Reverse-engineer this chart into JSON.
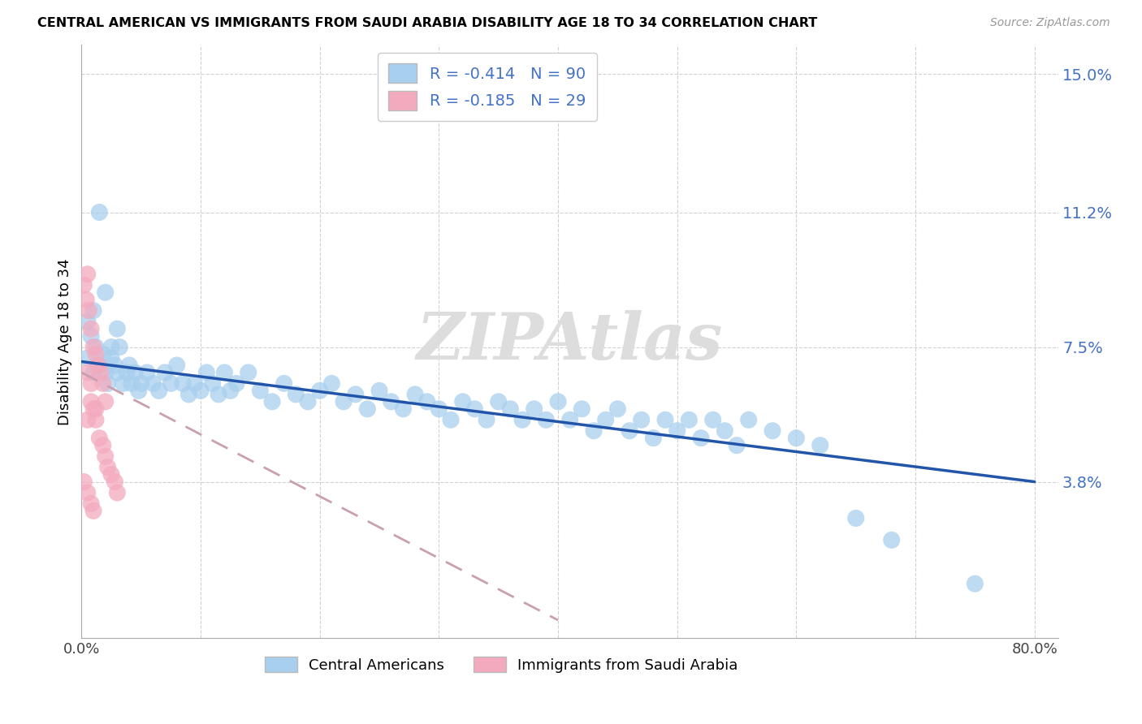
{
  "title": "CENTRAL AMERICAN VS IMMIGRANTS FROM SAUDI ARABIA DISABILITY AGE 18 TO 34 CORRELATION CHART",
  "source": "Source: ZipAtlas.com",
  "ylabel": "Disability Age 18 to 34",
  "xlim": [
    0.0,
    0.82
  ],
  "ylim": [
    -0.005,
    0.158
  ],
  "yticks": [
    0.038,
    0.075,
    0.112,
    0.15
  ],
  "ytick_labels": [
    "3.8%",
    "7.5%",
    "11.2%",
    "15.0%"
  ],
  "xticks": [
    0.0,
    0.1,
    0.2,
    0.3,
    0.4,
    0.5,
    0.6,
    0.7,
    0.8
  ],
  "xtick_labels": [
    "0.0%",
    "",
    "",
    "",
    "",
    "",
    "",
    "",
    "80.0%"
  ],
  "blue_R": -0.414,
  "blue_N": 90,
  "pink_R": -0.185,
  "pink_N": 29,
  "blue_color": "#A8CFEE",
  "pink_color": "#F4AABE",
  "blue_line_color": "#2255AA",
  "pink_line_color": "#C8A0B0",
  "legend_label_blue": "Central Americans",
  "legend_label_pink": "Immigrants from Saudi Arabia",
  "watermark": "ZIPAtlas",
  "blue_line_x0": 0.0,
  "blue_line_x1": 0.8,
  "blue_line_y0": 0.071,
  "blue_line_y1": 0.038,
  "pink_line_x0": 0.0,
  "pink_line_x1": 0.4,
  "pink_line_y0": 0.068,
  "pink_line_y1": 0.0,
  "blue_x": [
    0.005,
    0.008,
    0.01,
    0.012,
    0.015,
    0.018,
    0.02,
    0.022,
    0.025,
    0.028,
    0.03,
    0.032,
    0.035,
    0.038,
    0.04,
    0.042,
    0.045,
    0.048,
    0.05,
    0.055,
    0.06,
    0.065,
    0.07,
    0.075,
    0.08,
    0.085,
    0.09,
    0.095,
    0.1,
    0.105,
    0.11,
    0.115,
    0.12,
    0.125,
    0.13,
    0.14,
    0.15,
    0.16,
    0.17,
    0.18,
    0.19,
    0.2,
    0.21,
    0.22,
    0.23,
    0.24,
    0.25,
    0.26,
    0.27,
    0.28,
    0.29,
    0.3,
    0.31,
    0.32,
    0.33,
    0.34,
    0.35,
    0.36,
    0.37,
    0.38,
    0.39,
    0.4,
    0.41,
    0.42,
    0.43,
    0.44,
    0.45,
    0.46,
    0.47,
    0.48,
    0.49,
    0.5,
    0.51,
    0.52,
    0.53,
    0.54,
    0.55,
    0.56,
    0.58,
    0.6,
    0.62,
    0.65,
    0.68,
    0.75,
    0.005,
    0.01,
    0.015,
    0.02,
    0.025,
    0.03
  ],
  "blue_y": [
    0.072,
    0.078,
    0.068,
    0.075,
    0.07,
    0.073,
    0.068,
    0.065,
    0.072,
    0.07,
    0.068,
    0.075,
    0.065,
    0.068,
    0.07,
    0.065,
    0.068,
    0.063,
    0.065,
    0.068,
    0.065,
    0.063,
    0.068,
    0.065,
    0.07,
    0.065,
    0.062,
    0.065,
    0.063,
    0.068,
    0.065,
    0.062,
    0.068,
    0.063,
    0.065,
    0.068,
    0.063,
    0.06,
    0.065,
    0.062,
    0.06,
    0.063,
    0.065,
    0.06,
    0.062,
    0.058,
    0.063,
    0.06,
    0.058,
    0.062,
    0.06,
    0.058,
    0.055,
    0.06,
    0.058,
    0.055,
    0.06,
    0.058,
    0.055,
    0.058,
    0.055,
    0.06,
    0.055,
    0.058,
    0.052,
    0.055,
    0.058,
    0.052,
    0.055,
    0.05,
    0.055,
    0.052,
    0.055,
    0.05,
    0.055,
    0.052,
    0.048,
    0.055,
    0.052,
    0.05,
    0.048,
    0.028,
    0.022,
    0.01,
    0.082,
    0.085,
    0.112,
    0.09,
    0.075,
    0.08
  ],
  "pink_x": [
    0.002,
    0.004,
    0.005,
    0.006,
    0.008,
    0.01,
    0.012,
    0.014,
    0.016,
    0.018,
    0.02,
    0.005,
    0.008,
    0.01,
    0.012,
    0.015,
    0.018,
    0.02,
    0.022,
    0.025,
    0.028,
    0.03,
    0.002,
    0.005,
    0.008,
    0.01,
    0.005,
    0.008,
    0.012
  ],
  "pink_y": [
    0.092,
    0.088,
    0.095,
    0.085,
    0.08,
    0.075,
    0.073,
    0.07,
    0.068,
    0.065,
    0.06,
    0.055,
    0.06,
    0.058,
    0.055,
    0.05,
    0.048,
    0.045,
    0.042,
    0.04,
    0.038,
    0.035,
    0.038,
    0.035,
    0.032,
    0.03,
    0.068,
    0.065,
    0.058
  ]
}
